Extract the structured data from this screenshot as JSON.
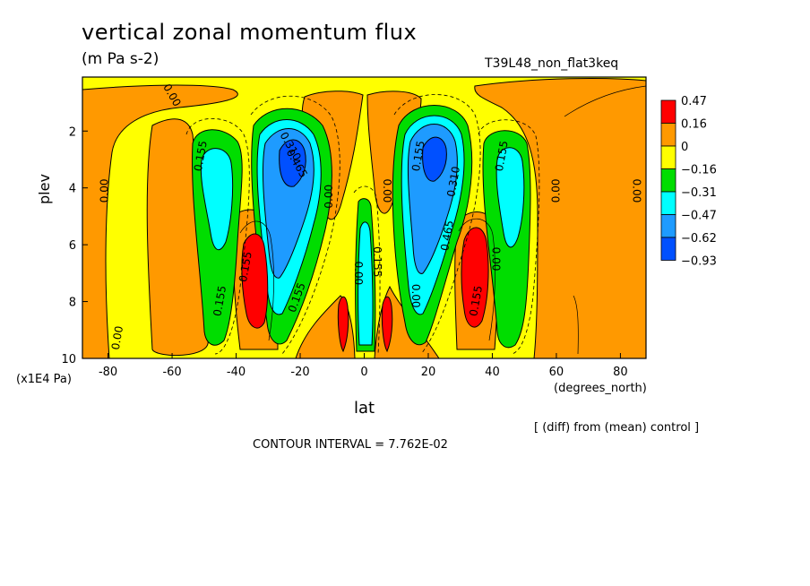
{
  "chart_data": {
    "type": "heatmap",
    "title": "vertical zonal momentum flux",
    "units": "(m Pa s-2)",
    "run_name": "T39L48_non_flat3keq",
    "xlabel": "lat",
    "ylabel": "plev",
    "x_unit": "(degrees_north)",
    "y_unit": "(x1E4 Pa)",
    "note": "[ (diff) from (mean) control ]",
    "contour_interval": "CONTOUR INTERVAL = 7.762E-02",
    "xlim": [
      -88,
      88
    ],
    "ylim": [
      10,
      0.1
    ],
    "x_ticks": [
      -80,
      -60,
      -40,
      -20,
      0,
      20,
      40,
      60,
      80
    ],
    "y_ticks": [
      2,
      4,
      6,
      8,
      10
    ],
    "legend": {
      "placement": "right",
      "labels": [
        "0.47",
        "0.16",
        "0",
        "−0.16",
        "−0.31",
        "−0.47",
        "−0.62",
        "−0.93"
      ],
      "colors": [
        "#ff0000",
        "#ff9900",
        "#ffff00",
        "#00dd00",
        "#00ffff",
        "#1e9bff",
        "#0050ff"
      ]
    },
    "contour_labels": [
      {
        "text": "0.00",
        "x": -61,
        "y": 0.8,
        "rot": 60
      },
      {
        "text": "0.00",
        "x": -80,
        "y": 4.1,
        "rot": -90
      },
      {
        "text": "0.155",
        "x": -50,
        "y": 2.9,
        "rot": -80
      },
      {
        "text": "0.00",
        "x": -76,
        "y": 9.3,
        "rot": -80
      },
      {
        "text": "0.155",
        "x": -44,
        "y": 8.0,
        "rot": -80
      },
      {
        "text": "0.155",
        "x": -36,
        "y": 6.8,
        "rot": -80
      },
      {
        "text": "0.155",
        "x": -20,
        "y": 7.9,
        "rot": -70
      },
      {
        "text": "0.310",
        "x": -24,
        "y": 2.6,
        "rot": 60
      },
      {
        "text": "0.465",
        "x": -22,
        "y": 3.2,
        "rot": 60
      },
      {
        "text": "0.00",
        "x": -10,
        "y": 4.3,
        "rot": -90
      },
      {
        "text": "0.00",
        "x": 6,
        "y": 4.1,
        "rot": 90
      },
      {
        "text": "0.155",
        "x": 3,
        "y": 6.6,
        "rot": 90
      },
      {
        "text": "0.00",
        "x": -3,
        "y": 7.0,
        "rot": 90
      },
      {
        "text": "0.00",
        "x": 15,
        "y": 7.8,
        "rot": 90
      },
      {
        "text": "0.155",
        "x": 18,
        "y": 2.9,
        "rot": -80
      },
      {
        "text": "0.310",
        "x": 29,
        "y": 3.8,
        "rot": -80
      },
      {
        "text": "0.465",
        "x": 27,
        "y": 5.7,
        "rot": -80
      },
      {
        "text": "0.155",
        "x": 36,
        "y": 8.0,
        "rot": -80
      },
      {
        "text": "0.00",
        "x": 40,
        "y": 6.5,
        "rot": 90
      },
      {
        "text": "0.155",
        "x": 44,
        "y": 2.9,
        "rot": -80
      },
      {
        "text": "0.00",
        "x": 61,
        "y": 4.1,
        "rot": -90
      },
      {
        "text": "0.00",
        "x": 84,
        "y": 4.1,
        "rot": 90
      }
    ]
  }
}
